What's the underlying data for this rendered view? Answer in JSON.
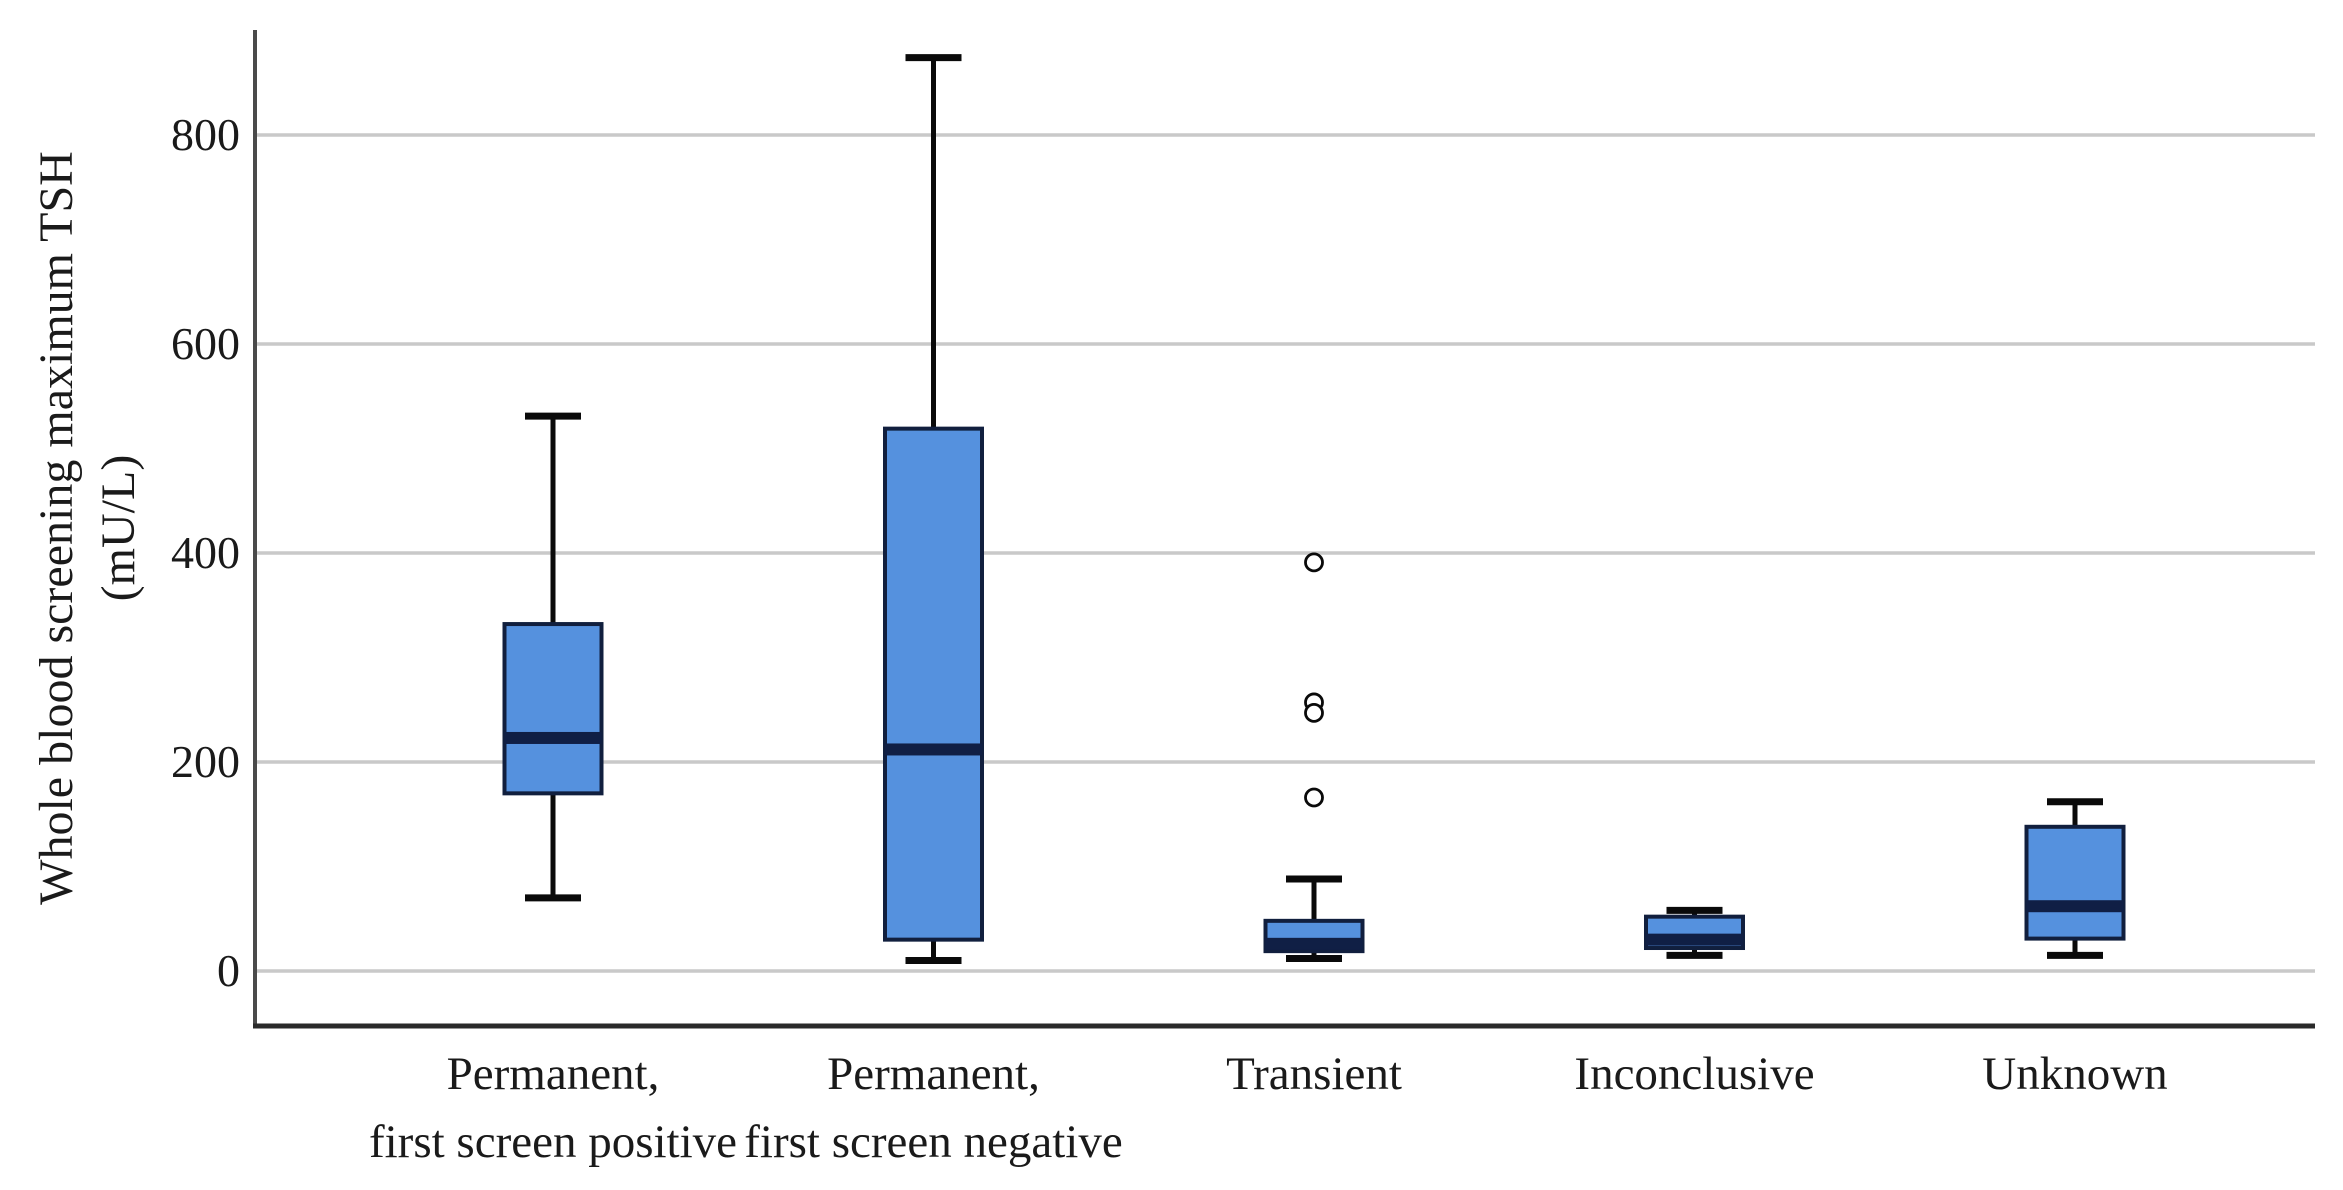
{
  "figure": {
    "y_axis_title_line1": "Whole blood screening maximum TSH",
    "y_axis_title_line2": "(mU/L)"
  },
  "chart_data": {
    "type": "boxplot",
    "title": "",
    "xlabel": "",
    "ylabel": "Whole blood screening maximum TSH (mU/L)",
    "ylim": [
      -50,
      900
    ],
    "yticks": [
      0,
      200,
      400,
      600,
      800
    ],
    "grid": true,
    "legend": "none",
    "categories": [
      {
        "label_lines": [
          "Permanent,",
          "first screen positive"
        ],
        "min": 70,
        "q1": 170,
        "median": 223,
        "q3": 332,
        "max": 531,
        "outliers": []
      },
      {
        "label_lines": [
          "Permanent,",
          "first screen negative"
        ],
        "min": 10,
        "q1": 30,
        "median": 212,
        "q3": 519,
        "max": 874,
        "outliers": []
      },
      {
        "label_lines": [
          "Transient"
        ],
        "min": 12,
        "q1": 19,
        "median": 26,
        "q3": 48,
        "max": 88,
        "outliers": [
          391,
          257,
          247,
          166
        ]
      },
      {
        "label_lines": [
          "Inconclusive"
        ],
        "min": 15,
        "q1": 22,
        "median": 30,
        "q3": 52,
        "max": 58,
        "outliers": []
      },
      {
        "label_lines": [
          "Unknown"
        ],
        "min": 15,
        "q1": 31,
        "median": 62,
        "q3": 138,
        "max": 162,
        "outliers": []
      }
    ]
  },
  "style": {
    "box_fill": "#5591DE",
    "box_border": "#111F3E",
    "median_color": "#101F45",
    "whisker_color": "#0a0a0a",
    "outlier_stroke": "#0a0a0a",
    "outlier_fill": "#ffffff",
    "gridline_color": "#C9C9C9",
    "axis_line_color": "#4a4a4a",
    "frame_line_color": "#2a2a2a",
    "text_color": "#1a1a1a",
    "background": "#ffffff"
  }
}
